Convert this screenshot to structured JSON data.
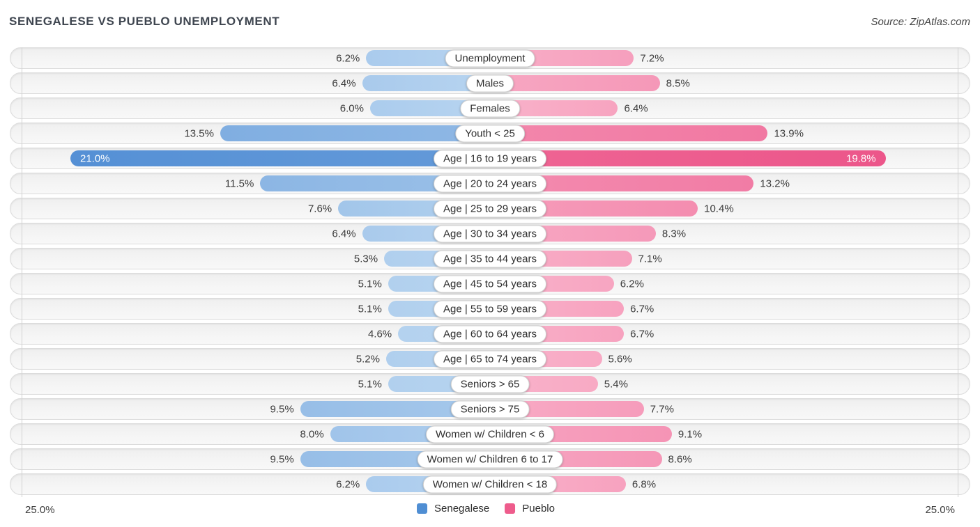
{
  "header": {
    "title": "SENEGALESE VS PUEBLO UNEMPLOYMENT",
    "source": "Source: ZipAtlas.com"
  },
  "chart_data": {
    "type": "bar",
    "variant": "diverging-horizontal-pyramid",
    "title": "SENEGALESE VS PUEBLO UNEMPLOYMENT",
    "categories": [
      "Unemployment",
      "Males",
      "Females",
      "Youth < 25",
      "Age | 16 to 19 years",
      "Age | 20 to 24 years",
      "Age | 25 to 29 years",
      "Age | 30 to 34 years",
      "Age | 35 to 44 years",
      "Age | 45 to 54 years",
      "Age | 55 to 59 years",
      "Age | 60 to 64 years",
      "Age | 65 to 74 years",
      "Seniors > 65",
      "Seniors > 75",
      "Women w/ Children < 6",
      "Women w/ Children 6 to 17",
      "Women w/ Children < 18"
    ],
    "series": [
      {
        "name": "Senegalese",
        "side": "left",
        "values": [
          6.2,
          6.4,
          6.0,
          13.5,
          21.0,
          11.5,
          7.6,
          6.4,
          5.3,
          5.1,
          5.1,
          4.6,
          5.2,
          5.1,
          9.5,
          8.0,
          9.5,
          6.2
        ]
      },
      {
        "name": "Pueblo",
        "side": "right",
        "values": [
          7.2,
          8.5,
          6.4,
          13.9,
          19.8,
          13.2,
          10.4,
          8.3,
          7.1,
          6.2,
          6.7,
          6.7,
          5.6,
          5.4,
          7.7,
          9.1,
          8.6,
          6.8
        ]
      }
    ],
    "axis": {
      "left_label": "25.0%",
      "right_label": "25.0%",
      "xlim": [
        -25,
        25
      ],
      "unit": "%"
    },
    "legend": [
      {
        "label": "Senegalese",
        "color": "#4f8ed3"
      },
      {
        "label": "Pueblo",
        "color": "#ee5c8c"
      }
    ],
    "colors": {
      "blue_light": "#b7d4f0",
      "blue_dark": "#5590d5",
      "pink_light": "#f9b2ca",
      "pink_dark": "#eb4f85",
      "row_background": "#f2f2f2",
      "label_text": "#3b3b3b"
    }
  }
}
